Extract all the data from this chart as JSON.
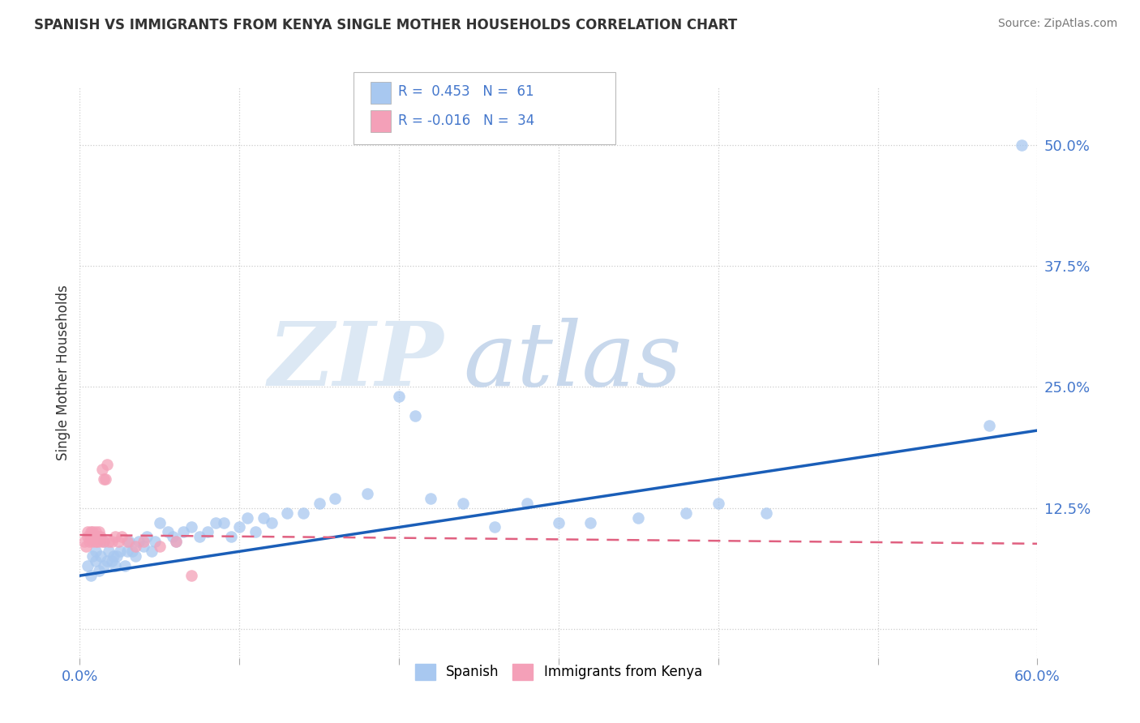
{
  "title": "SPANISH VS IMMIGRANTS FROM KENYA SINGLE MOTHER HOUSEHOLDS CORRELATION CHART",
  "source": "Source: ZipAtlas.com",
  "ylabel": "Single Mother Households",
  "xlim": [
    0.0,
    0.6
  ],
  "ylim": [
    -0.03,
    0.56
  ],
  "r_spanish": 0.453,
  "n_spanish": 61,
  "r_kenya": -0.016,
  "n_kenya": 34,
  "legend_labels": [
    "Spanish",
    "Immigrants from Kenya"
  ],
  "color_spanish": "#a8c8f0",
  "color_kenya": "#f4a0b8",
  "line_color_spanish": "#1a5eb8",
  "line_color_kenya": "#e06080",
  "tick_color": "#4477cc",
  "spanish_x": [
    0.005,
    0.007,
    0.008,
    0.01,
    0.01,
    0.012,
    0.013,
    0.015,
    0.015,
    0.017,
    0.018,
    0.02,
    0.021,
    0.022,
    0.023,
    0.025,
    0.028,
    0.03,
    0.031,
    0.033,
    0.035,
    0.037,
    0.04,
    0.042,
    0.045,
    0.047,
    0.05,
    0.055,
    0.058,
    0.06,
    0.065,
    0.07,
    0.075,
    0.08,
    0.085,
    0.09,
    0.095,
    0.1,
    0.105,
    0.11,
    0.115,
    0.12,
    0.13,
    0.14,
    0.15,
    0.16,
    0.18,
    0.2,
    0.21,
    0.22,
    0.24,
    0.26,
    0.28,
    0.3,
    0.32,
    0.35,
    0.38,
    0.4,
    0.43,
    0.57,
    0.59
  ],
  "spanish_y": [
    0.065,
    0.055,
    0.075,
    0.07,
    0.08,
    0.06,
    0.075,
    0.065,
    0.09,
    0.07,
    0.08,
    0.07,
    0.075,
    0.065,
    0.075,
    0.08,
    0.065,
    0.08,
    0.09,
    0.08,
    0.075,
    0.09,
    0.085,
    0.095,
    0.08,
    0.09,
    0.11,
    0.1,
    0.095,
    0.09,
    0.1,
    0.105,
    0.095,
    0.1,
    0.11,
    0.11,
    0.095,
    0.105,
    0.115,
    0.1,
    0.115,
    0.11,
    0.12,
    0.12,
    0.13,
    0.135,
    0.14,
    0.24,
    0.22,
    0.135,
    0.13,
    0.105,
    0.13,
    0.11,
    0.11,
    0.115,
    0.12,
    0.13,
    0.12,
    0.21,
    0.5
  ],
  "kenya_x": [
    0.003,
    0.004,
    0.005,
    0.005,
    0.006,
    0.007,
    0.007,
    0.008,
    0.008,
    0.009,
    0.01,
    0.01,
    0.01,
    0.011,
    0.012,
    0.012,
    0.013,
    0.013,
    0.014,
    0.015,
    0.015,
    0.016,
    0.017,
    0.018,
    0.02,
    0.022,
    0.024,
    0.026,
    0.03,
    0.035,
    0.04,
    0.05,
    0.06,
    0.07
  ],
  "kenya_y": [
    0.09,
    0.085,
    0.095,
    0.1,
    0.09,
    0.095,
    0.1,
    0.09,
    0.1,
    0.095,
    0.09,
    0.1,
    0.095,
    0.09,
    0.095,
    0.1,
    0.09,
    0.095,
    0.165,
    0.155,
    0.09,
    0.155,
    0.17,
    0.09,
    0.09,
    0.095,
    0.09,
    0.095,
    0.09,
    0.085,
    0.09,
    0.085,
    0.09,
    0.055
  ],
  "line_spanish_x0": 0.0,
  "line_spanish_x1": 0.6,
  "line_spanish_y0": 0.055,
  "line_spanish_y1": 0.205,
  "line_kenya_x0": 0.0,
  "line_kenya_x1": 0.6,
  "line_kenya_y0": 0.097,
  "line_kenya_y1": 0.088
}
